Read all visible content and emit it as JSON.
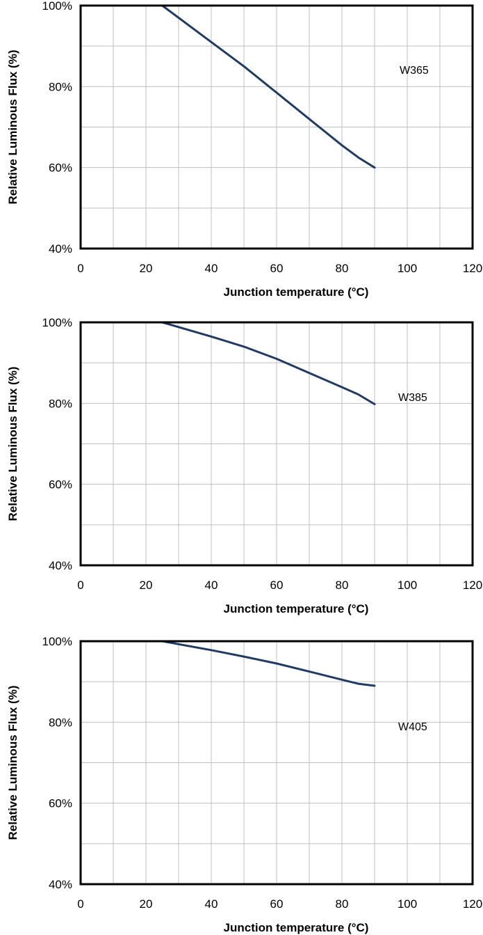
{
  "colors": {
    "line": "#1f3a63",
    "grid": "#bfbfbf",
    "frame": "#000000"
  },
  "chart_data": [
    {
      "type": "line",
      "xlabel": "Junction temperature (°C)",
      "ylabel": "Relative Luminous Flux (%)",
      "xlim": [
        0,
        120
      ],
      "ylim": [
        40,
        100
      ],
      "xticks": [
        "0",
        "20",
        "40",
        "60",
        "80",
        "100",
        "120"
      ],
      "yticks": [
        "40%",
        "60%",
        "80%",
        "100%"
      ],
      "grid": true,
      "series": [
        {
          "name": "W365",
          "x": [
            25,
            40,
            50,
            60,
            70,
            80,
            85,
            90
          ],
          "y": [
            100,
            91,
            85,
            78.5,
            72,
            65.5,
            62.5,
            60
          ]
        }
      ]
    },
    {
      "type": "line",
      "xlabel": "Junction temperature (°C)",
      "ylabel": "Relative Luminous Flux (%)",
      "xlim": [
        0,
        120
      ],
      "ylim": [
        40,
        100
      ],
      "xticks": [
        "0",
        "20",
        "40",
        "60",
        "80",
        "100",
        "120"
      ],
      "yticks": [
        "40%",
        "60%",
        "80%",
        "100%"
      ],
      "grid": true,
      "series": [
        {
          "name": "W385",
          "x": [
            25,
            40,
            50,
            60,
            70,
            80,
            85,
            90
          ],
          "y": [
            100,
            96.5,
            94,
            91,
            87.5,
            84,
            82.2,
            79.8
          ]
        }
      ]
    },
    {
      "type": "line",
      "xlabel": "Junction temperature (°C)",
      "ylabel": "Relative Luminous Flux (%)",
      "xlim": [
        0,
        120
      ],
      "ylim": [
        40,
        100
      ],
      "xticks": [
        "0",
        "20",
        "40",
        "60",
        "80",
        "100",
        "120"
      ],
      "yticks": [
        "40%",
        "60%",
        "80%",
        "100%"
      ],
      "grid": true,
      "series": [
        {
          "name": "W405",
          "x": [
            25,
            40,
            50,
            60,
            70,
            80,
            85,
            90
          ],
          "y": [
            100,
            97.8,
            96.2,
            94.5,
            92.5,
            90.5,
            89.5,
            89
          ]
        }
      ]
    }
  ]
}
